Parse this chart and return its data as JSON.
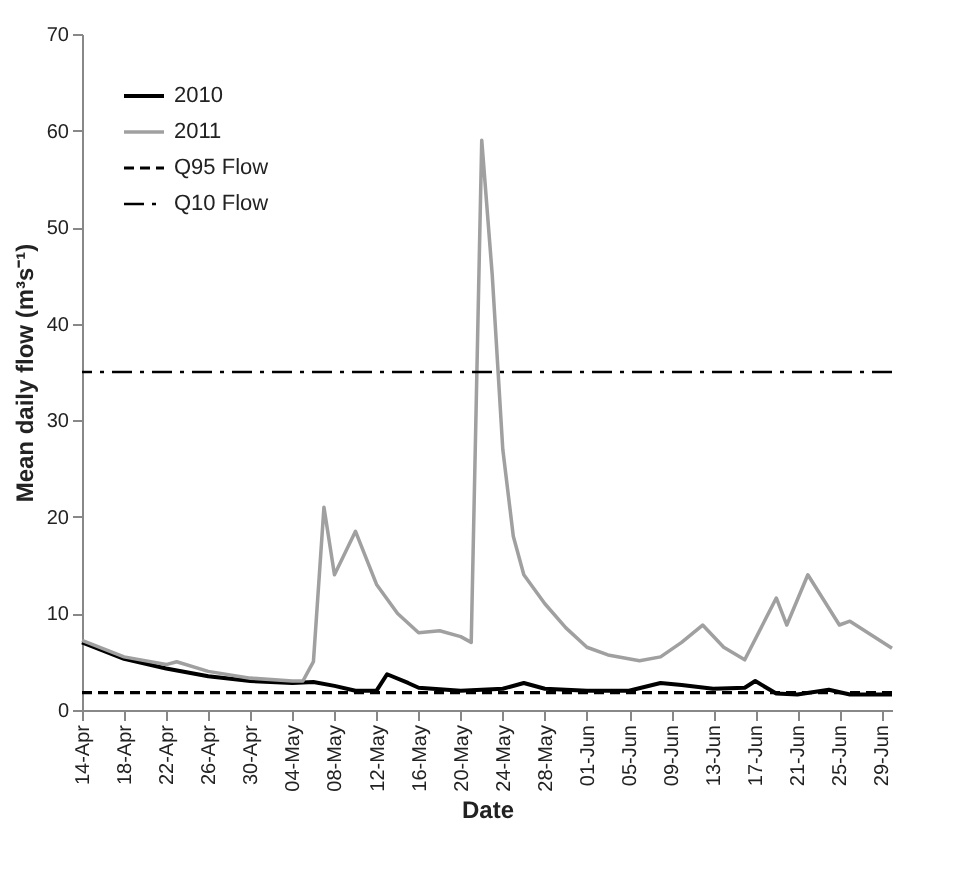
{
  "chart_data": {
    "type": "line",
    "xlabel": "Date",
    "ylabel": "Mean daily flow (m³s⁻¹)",
    "xlim": [
      "--04-14",
      "--06-30"
    ],
    "xticks": [
      {
        "value": "--04-14",
        "label": "14-Apr"
      },
      {
        "value": "--04-18",
        "label": "18-Apr"
      },
      {
        "value": "--04-22",
        "label": "22-Apr"
      },
      {
        "value": "--04-26",
        "label": "26-Apr"
      },
      {
        "value": "--04-30",
        "label": "30-Apr"
      },
      {
        "value": "--05-04",
        "label": "04-May"
      },
      {
        "value": "--05-08",
        "label": "08-May"
      },
      {
        "value": "--05-12",
        "label": "12-May"
      },
      {
        "value": "--05-16",
        "label": "16-May"
      },
      {
        "value": "--05-20",
        "label": "20-May"
      },
      {
        "value": "--05-24",
        "label": "24-May"
      },
      {
        "value": "--05-28",
        "label": "28-May"
      },
      {
        "value": "--06-01",
        "label": "01-Jun"
      },
      {
        "value": "--06-05",
        "label": "05-Jun"
      },
      {
        "value": "--06-09",
        "label": "09-Jun"
      },
      {
        "value": "--06-13",
        "label": "13-Jun"
      },
      {
        "value": "--06-17",
        "label": "17-Jun"
      },
      {
        "value": "--06-21",
        "label": "21-Jun"
      },
      {
        "value": "--06-25",
        "label": "25-Jun"
      },
      {
        "value": "--06-29",
        "label": "29-Jun"
      }
    ],
    "ylim": [
      0,
      70
    ],
    "yticks": [
      0,
      10,
      20,
      30,
      40,
      50,
      60,
      70
    ],
    "legend": "top left",
    "marker": "none",
    "grid": false,
    "series": [
      {
        "name": "2010",
        "color": "#000000",
        "x": [
          "--04-14",
          "--04-18",
          "--04-22",
          "--04-26",
          "--04-30",
          "--05-04",
          "--05-06",
          "--05-08",
          "--05-10",
          "--05-12",
          "--05-13",
          "--05-15",
          "--05-16",
          "--05-20",
          "--05-24",
          "--05-26",
          "--05-28",
          "--06-01",
          "--06-05",
          "--06-08",
          "--06-10",
          "--06-13",
          "--06-16",
          "--06-17",
          "--06-19",
          "--06-21",
          "--06-24",
          "--06-26",
          "--06-30"
        ],
        "values": [
          7,
          5.3,
          4.3,
          3.5,
          3,
          2.8,
          2.9,
          2.5,
          2,
          2,
          3.7,
          2.8,
          2.3,
          2,
          2.2,
          2.8,
          2.2,
          2,
          2,
          2.8,
          2.6,
          2.2,
          2.3,
          3,
          1.7,
          1.6,
          2.1,
          1.6,
          1.6
        ]
      },
      {
        "name": "2011",
        "color": "#a0a0a0",
        "x": [
          "--04-14",
          "--04-18",
          "--04-22",
          "--04-23",
          "--04-26",
          "--04-30",
          "--05-04",
          "--05-05",
          "--05-06",
          "--05-07",
          "--05-08",
          "--05-10",
          "--05-12",
          "--05-14",
          "--05-16",
          "--05-18",
          "--05-20",
          "--05-21",
          "--05-22",
          "--05-23",
          "--05-24",
          "--05-25",
          "--05-26",
          "--05-28",
          "--05-30",
          "--06-01",
          "--06-03",
          "--06-06",
          "--06-08",
          "--06-10",
          "--06-12",
          "--06-14",
          "--06-16",
          "--06-19",
          "--06-20",
          "--06-22",
          "--06-25",
          "--06-26",
          "--06-30"
        ],
        "values": [
          7.2,
          5.5,
          4.7,
          5,
          4,
          3.3,
          3,
          3,
          5,
          21,
          14,
          18.5,
          13,
          10,
          8,
          8.2,
          7.6,
          7,
          59,
          45,
          27,
          18,
          14,
          11,
          8.5,
          6.5,
          5.7,
          5.1,
          5.5,
          7,
          8.8,
          6.5,
          5.2,
          11.6,
          8.8,
          14,
          8.8,
          9.2,
          6.4
        ]
      }
    ],
    "ref_lines": [
      {
        "axis": "y",
        "value": 1.8,
        "label": "Q95 Flow",
        "color": "#000000",
        "line_style": "dashed"
      },
      {
        "axis": "y",
        "value": 35,
        "label": "Q10 Flow",
        "color": "#000000",
        "line_style": "dashdot"
      }
    ]
  }
}
